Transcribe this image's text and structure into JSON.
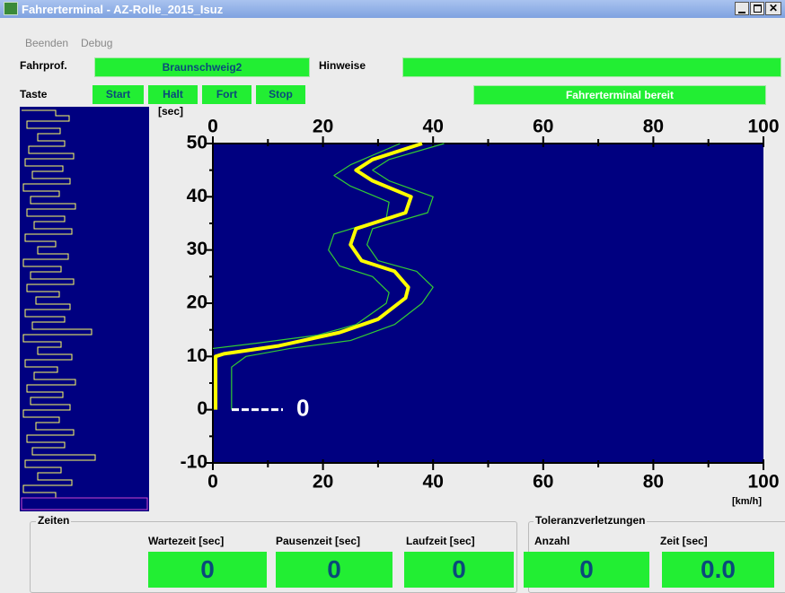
{
  "window": {
    "title": "Fahrerterminal - AZ-Rolle_2015_Isuz",
    "menu": [
      "Beenden",
      "Debug"
    ]
  },
  "header": {
    "profile_label": "Fahrprof.",
    "profile": "Braunschweig2",
    "hints_label": "Hinweise",
    "keys_label": "Taste",
    "buttons": [
      "Start",
      "Halt",
      "Fort",
      "Stop"
    ],
    "status": "Fahrerterminal bereit"
  },
  "chart_data": {
    "type": "line",
    "y_unit_label": "[sec]",
    "x_unit_label": "[km/h]",
    "xlim": [
      0,
      100
    ],
    "xticks": [
      0,
      20,
      40,
      60,
      80,
      100
    ],
    "minor_xticks": [
      10,
      30,
      50,
      70,
      90
    ],
    "ylim": [
      -10,
      50
    ],
    "yticks": [
      -10,
      0,
      10,
      20,
      30,
      40,
      50
    ],
    "minor_yticks": [
      -5,
      5,
      15,
      25,
      35,
      45
    ],
    "cursor_time": 0,
    "cursor_color": "#ffffff",
    "series": [
      {
        "color": "#ffff00",
        "width": 4,
        "x": [
          0.5,
          0.5,
          2,
          12,
          23,
          30,
          35,
          35.5,
          33,
          27,
          25,
          26,
          35,
          36,
          29,
          26,
          29,
          38
        ],
        "values": [
          0,
          10,
          10.5,
          12,
          14.5,
          17,
          21,
          23,
          26,
          28,
          31,
          34,
          37,
          40,
          43,
          45,
          47,
          50
        ]
      },
      {
        "color": "#33cc33",
        "width": 1.2,
        "x": [
          3.4,
          3.4,
          6,
          14,
          25,
          33,
          38,
          40,
          37,
          30,
          28,
          29,
          39,
          40,
          32,
          29,
          32,
          42
        ],
        "values": [
          0,
          8,
          10,
          11.5,
          13,
          16,
          20,
          23,
          26,
          28,
          31,
          34,
          37,
          40,
          43,
          45,
          47,
          50
        ]
      },
      {
        "color": "#33cc33",
        "width": 1.2,
        "x": [
          0,
          8,
          19,
          26,
          31.5,
          32,
          29,
          23,
          21,
          22,
          31.5,
          32,
          25,
          22,
          25,
          34
        ],
        "values": [
          11.5,
          12.5,
          14,
          16,
          20,
          22,
          25,
          27,
          30,
          33,
          36,
          39,
          42,
          44,
          46,
          50
        ]
      }
    ]
  },
  "footer": {
    "times_title": "Zeiten",
    "times": [
      {
        "label": "Wartezeit [sec]",
        "value": "0"
      },
      {
        "label": "Pausenzeit [sec]",
        "value": "0"
      },
      {
        "label": "Laufzeit [sec]",
        "value": "0"
      }
    ],
    "violations_title": "Toleranzverletzungen",
    "violations": [
      {
        "label": "Anzahl",
        "value": "0"
      },
      {
        "label": "Zeit [sec]",
        "value": "0.0"
      }
    ]
  }
}
